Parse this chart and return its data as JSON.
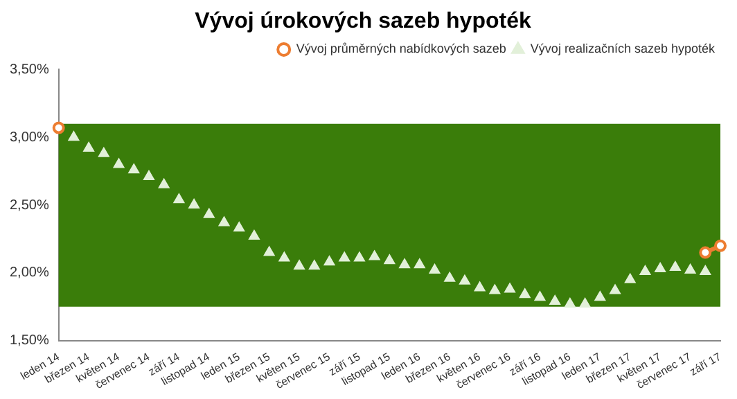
{
  "chart_data": {
    "type": "line",
    "title": "Vývoj úrokových sazeb hypoték",
    "categories": [
      "leden 14",
      null,
      "březen 14",
      null,
      "květen 14",
      null,
      "červenec 14",
      null,
      "září 14",
      null,
      "listopad 14",
      null,
      "leden 15",
      null,
      "březen 15",
      null,
      "květen 15",
      null,
      "červenec 15",
      null,
      "září 15",
      null,
      "listopad 15",
      null,
      "leden 16",
      null,
      "březen 16",
      null,
      "květen 16",
      null,
      "červenec 16",
      null,
      "září 16",
      null,
      "listopad 16",
      null,
      "leden 17",
      null,
      "březen 17",
      null,
      "květen 17",
      null,
      "červenec 17",
      null,
      "září 17"
    ],
    "series": [
      {
        "name": "Vývoj průměrných nabídkových sazeb",
        "type": "line",
        "color": "#ed7d31",
        "marker": "circle",
        "line_style": "solid",
        "values": [
          3.07,
          null,
          null,
          null,
          null,
          null,
          null,
          null,
          null,
          null,
          null,
          null,
          null,
          null,
          null,
          null,
          null,
          null,
          null,
          null,
          null,
          null,
          null,
          null,
          null,
          null,
          null,
          null,
          null,
          null,
          null,
          null,
          null,
          null,
          null,
          null,
          null,
          null,
          null,
          null,
          null,
          null,
          null,
          2.15,
          2.2
        ]
      },
      {
        "name": "Vývoj realizačních sazeb hypoték",
        "type": "scatter",
        "color": "#e2f0d9",
        "marker": "triangle",
        "values": [
          null,
          3.0,
          2.92,
          2.88,
          2.8,
          2.76,
          2.71,
          2.65,
          2.54,
          2.5,
          2.43,
          2.37,
          2.33,
          2.27,
          2.15,
          2.11,
          2.05,
          2.05,
          2.08,
          2.11,
          2.11,
          2.12,
          2.09,
          2.06,
          2.06,
          2.02,
          1.96,
          1.94,
          1.89,
          1.87,
          1.88,
          1.84,
          1.82,
          1.79,
          1.77,
          1.77,
          1.82,
          1.87,
          1.95,
          2.01,
          2.03,
          2.04,
          2.02,
          2.01,
          null
        ]
      }
    ],
    "bands": [
      {
        "axis": "y",
        "from": 1.75,
        "to": 3.1,
        "color": "#3a7d0a"
      }
    ],
    "ylim": [
      1.5,
      3.5
    ],
    "yticks": [
      {
        "value": 1.5,
        "label": "1,50%"
      },
      {
        "value": 2.0,
        "label": "2,00%"
      },
      {
        "value": 2.5,
        "label": "2,50%"
      },
      {
        "value": 3.0,
        "label": "3,00%"
      },
      {
        "value": 3.5,
        "label": "3,50%"
      }
    ],
    "grid": false,
    "legend": "top right"
  }
}
